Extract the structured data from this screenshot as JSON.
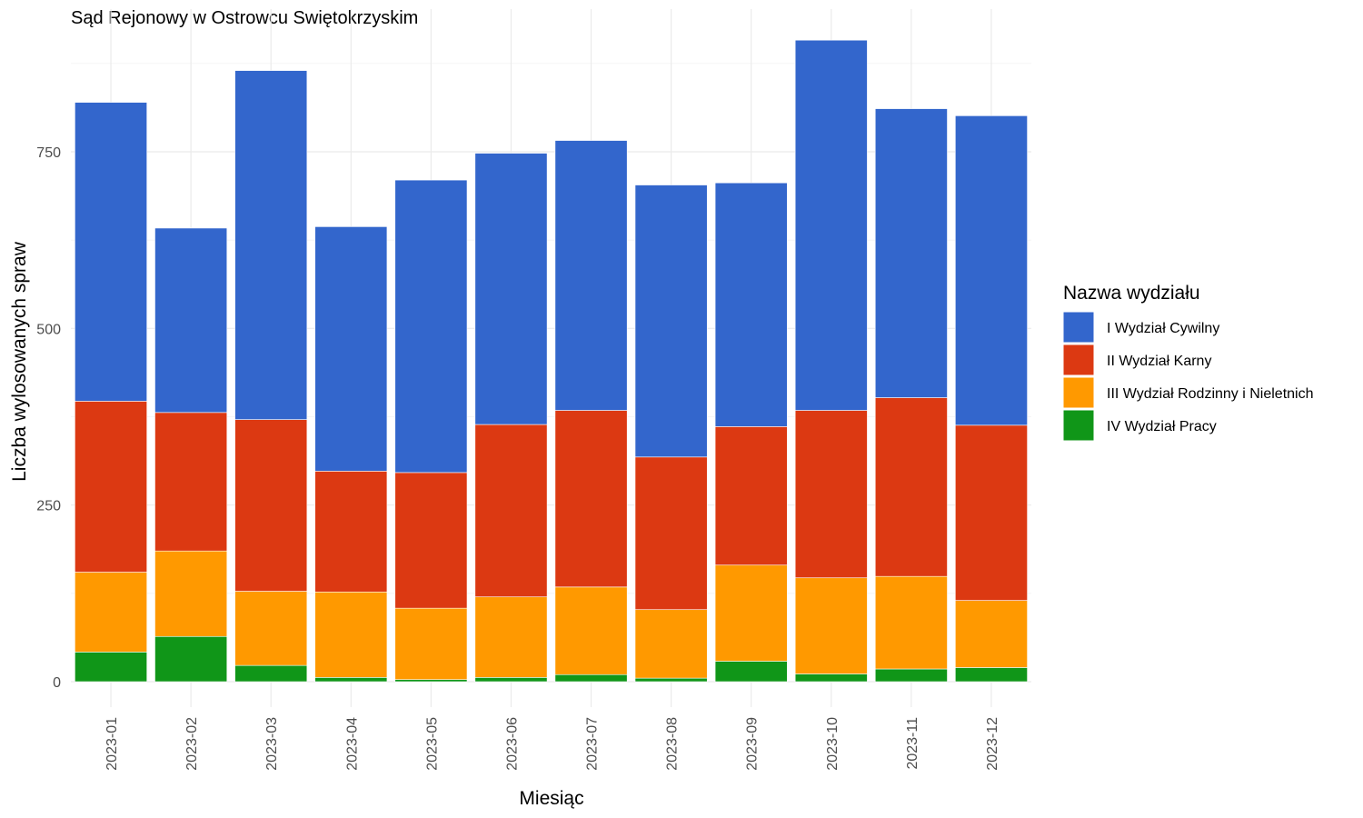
{
  "chart_data": {
    "type": "bar",
    "stacked": true,
    "title": "Sąd Rejonowy w Ostrowcu Swiętokrzyskim",
    "xlabel": "Miesiąc",
    "ylabel": "Liczba wylosowanych spraw",
    "ylim": [
      -35,
      925
    ],
    "yticks": [
      0,
      250,
      500,
      750
    ],
    "ytick_labels": [
      "0",
      "250",
      "500",
      "750"
    ],
    "grid": true,
    "legend": {
      "title": "Nazwa wydziału",
      "position": "right"
    },
    "categories": [
      "2023-01",
      "2023-02",
      "2023-03",
      "2023-04",
      "2023-05",
      "2023-06",
      "2023-07",
      "2023-08",
      "2023-09",
      "2023-10",
      "2023-11",
      "2023-12"
    ],
    "series": [
      {
        "name": "IV Wydział Pracy",
        "color": "#109618",
        "values": [
          42,
          64,
          23,
          6,
          3,
          6,
          10,
          5,
          29,
          11,
          18,
          20
        ]
      },
      {
        "name": "III Wydział Rodzinny i Nieletnich",
        "color": "#FF9900",
        "values": [
          113,
          121,
          105,
          121,
          101,
          114,
          124,
          97,
          136,
          136,
          131,
          95
        ]
      },
      {
        "name": "II Wydział Karny",
        "color": "#DC3912",
        "values": [
          242,
          196,
          243,
          171,
          192,
          244,
          250,
          216,
          196,
          237,
          253,
          248
        ]
      },
      {
        "name": "I Wydział Cywilny",
        "color": "#3366CC",
        "values": [
          423,
          261,
          494,
          346,
          414,
          384,
          382,
          385,
          345,
          524,
          409,
          438
        ]
      }
    ],
    "legend_order": [
      "I Wydział Cywilny",
      "II Wydział Karny",
      "III Wydział Rodzinny i Nieletnich",
      "IV Wydział Pracy"
    ]
  }
}
